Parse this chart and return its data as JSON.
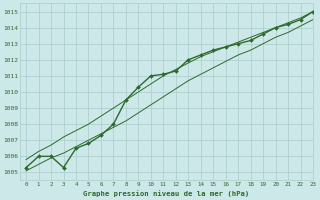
{
  "bg_color": "#cce8e8",
  "grid_color": "#aacccc",
  "line_color": "#2d6a2d",
  "title": "Graphe pression niveau de la mer (hPa)",
  "xlim": [
    -0.5,
    23
  ],
  "ylim": [
    1004.5,
    1015.5
  ],
  "xticks": [
    0,
    1,
    2,
    3,
    4,
    5,
    6,
    7,
    8,
    9,
    10,
    11,
    12,
    13,
    14,
    15,
    16,
    17,
    18,
    19,
    20,
    21,
    22,
    23
  ],
  "yticks": [
    1005,
    1006,
    1007,
    1008,
    1009,
    1010,
    1011,
    1012,
    1013,
    1014,
    1015
  ],
  "series": [
    {
      "x": [
        0,
        1,
        2,
        3,
        4,
        5,
        6,
        7,
        8,
        9,
        10,
        11,
        12,
        13,
        14,
        15,
        16,
        17,
        18,
        19,
        20,
        21,
        22,
        23
      ],
      "y": [
        1005.3,
        1006.0,
        1006.0,
        1005.3,
        1006.5,
        1006.8,
        1007.3,
        1008.0,
        1009.5,
        1010.3,
        1011.0,
        1011.1,
        1011.3,
        1012.0,
        1012.3,
        1012.6,
        1012.8,
        1013.0,
        1013.2,
        1013.6,
        1014.0,
        1014.2,
        1014.5,
        1015.0
      ],
      "marker": "D",
      "markersize": 2.0,
      "linewidth": 1.0
    },
    {
      "x": [
        0,
        1,
        2,
        3,
        4,
        5,
        6,
        7,
        8,
        9,
        10,
        11,
        12,
        13,
        14,
        15,
        16,
        17,
        18,
        19,
        20,
        21,
        22,
        23
      ],
      "y": [
        1005.8,
        1006.3,
        1006.7,
        1007.2,
        1007.6,
        1008.0,
        1008.5,
        1009.0,
        1009.5,
        1010.0,
        1010.5,
        1011.0,
        1011.4,
        1011.8,
        1012.2,
        1012.5,
        1012.8,
        1013.1,
        1013.4,
        1013.7,
        1014.0,
        1014.3,
        1014.6,
        1015.0
      ],
      "marker": null,
      "markersize": 0,
      "linewidth": 0.7
    },
    {
      "x": [
        0,
        1,
        2,
        3,
        4,
        5,
        6,
        7,
        8,
        9,
        10,
        11,
        12,
        13,
        14,
        15,
        16,
        17,
        18,
        19,
        20,
        21,
        22,
        23
      ],
      "y": [
        1005.1,
        1005.5,
        1005.9,
        1006.2,
        1006.6,
        1007.0,
        1007.4,
        1007.8,
        1008.2,
        1008.7,
        1009.2,
        1009.7,
        1010.2,
        1010.7,
        1011.1,
        1011.5,
        1011.9,
        1012.3,
        1012.6,
        1013.0,
        1013.4,
        1013.7,
        1014.1,
        1014.5
      ],
      "marker": null,
      "markersize": 0,
      "linewidth": 0.7
    }
  ]
}
